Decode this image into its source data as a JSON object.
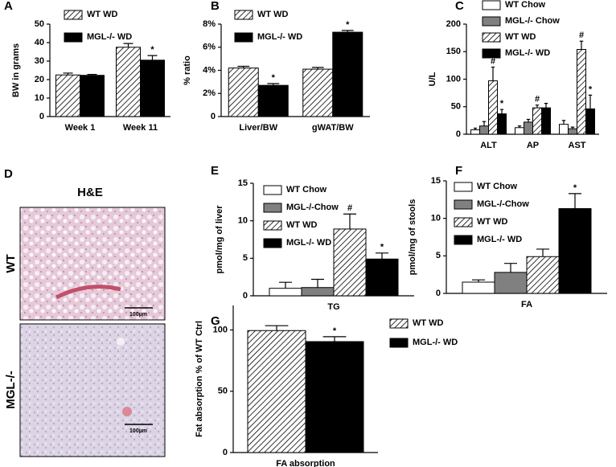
{
  "chart_data": [
    {
      "panel": "A",
      "type": "bar",
      "ylabel": "BW in grams",
      "categories": [
        "Week 1",
        "Week 11"
      ],
      "series": [
        {
          "name": "WT WD",
          "color": "#ffffff",
          "hatch": true,
          "values": [
            22.5,
            37.5
          ],
          "errors": [
            1,
            2
          ],
          "annotations": [
            null,
            null
          ]
        },
        {
          "name": "MGL-/- WD",
          "color": "#000000",
          "values": [
            22.3,
            30.5
          ],
          "errors": [
            0.5,
            2.5
          ],
          "annotations": [
            null,
            "*"
          ]
        }
      ],
      "ylim": [
        0,
        50
      ],
      "yticks": [
        0,
        10,
        20,
        30,
        40,
        50
      ],
      "legend": "top-left"
    },
    {
      "panel": "B",
      "type": "bar",
      "ylabel": "% ratio",
      "categories": [
        "Liver/BW",
        "gWAT/BW"
      ],
      "series": [
        {
          "name": "WT WD",
          "color": "#ffffff",
          "hatch": true,
          "values": [
            4.2,
            4.1
          ],
          "errors": [
            0.15,
            0.15
          ],
          "annotations": [
            null,
            null
          ]
        },
        {
          "name": "MGL-/- WD",
          "color": "#000000",
          "values": [
            2.7,
            7.3
          ],
          "errors": [
            0.15,
            0.15
          ],
          "annotations": [
            "*",
            "*"
          ]
        }
      ],
      "ylim": [
        0,
        8
      ],
      "yticks": [
        0,
        {
          "value": 2,
          "label": "2%"
        },
        {
          "value": 4,
          "label": "4%"
        },
        {
          "value": 6,
          "label": "6%"
        },
        {
          "value": 8,
          "label": "8%"
        }
      ],
      "legend": "top-left"
    },
    {
      "panel": "C",
      "type": "bar",
      "ylabel": "U/L",
      "categories": [
        "ALT",
        "AP",
        "AST"
      ],
      "series": [
        {
          "name": "WT Chow",
          "color": "#ffffff",
          "values": [
            8,
            12,
            18
          ],
          "errors": [
            3,
            3,
            7
          ],
          "annotations": [
            null,
            null,
            null
          ]
        },
        {
          "name": "MGL-/- Chow",
          "color": "#808080",
          "values": [
            15,
            22,
            10
          ],
          "errors": [
            8,
            5,
            3
          ],
          "annotations": [
            null,
            null,
            null
          ]
        },
        {
          "name": "WT WD",
          "color": "#ffffff",
          "hatch": true,
          "values": [
            97,
            48,
            154
          ],
          "errors": [
            25,
            5,
            15
          ],
          "annotations": [
            "#",
            "#",
            "#"
          ]
        },
        {
          "name": "MGL-/- WD",
          "color": "#000000",
          "values": [
            37,
            48,
            46
          ],
          "errors": [
            8,
            8,
            25
          ],
          "annotations": [
            "*",
            null,
            "*"
          ]
        }
      ],
      "ylim": [
        0,
        200
      ],
      "yticks": [
        0,
        50,
        100,
        150,
        200
      ],
      "legend": "top-right"
    },
    {
      "panel": "E",
      "type": "bar",
      "ylabel": "pmol/mg of liver",
      "categories": [
        "TG"
      ],
      "series": [
        {
          "name": "WT Chow",
          "color": "#ffffff",
          "values": [
            1
          ],
          "errors": [
            0.8
          ],
          "annotations": [
            null
          ]
        },
        {
          "name": "MGL-/-Chow",
          "color": "#808080",
          "values": [
            1.1
          ],
          "errors": [
            1.1
          ],
          "annotations": [
            null
          ]
        },
        {
          "name": "WT WD",
          "color": "#ffffff",
          "hatch": true,
          "values": [
            8.9
          ],
          "errors": [
            2
          ],
          "annotations": [
            "#"
          ]
        },
        {
          "name": "MGL-/- WD",
          "color": "#000000",
          "values": [
            4.9
          ],
          "errors": [
            0.8
          ],
          "annotations": [
            "*"
          ]
        }
      ],
      "ylim": [
        0,
        15
      ],
      "yticks": [
        0,
        5,
        10,
        15
      ],
      "legend": "top-left"
    },
    {
      "panel": "F",
      "type": "bar",
      "ylabel": "pmol/mg of stools",
      "categories": [
        "FA"
      ],
      "series": [
        {
          "name": "WT Chow",
          "color": "#ffffff",
          "values": [
            1.5
          ],
          "errors": [
            0.3
          ],
          "annotations": [
            null
          ]
        },
        {
          "name": "MGL-/-Chow",
          "color": "#808080",
          "values": [
            2.8
          ],
          "errors": [
            1.2
          ],
          "annotations": [
            null
          ]
        },
        {
          "name": "WT WD",
          "color": "#ffffff",
          "hatch": true,
          "values": [
            4.9
          ],
          "errors": [
            1
          ],
          "annotations": [
            null
          ]
        },
        {
          "name": "MGL-/- WD",
          "color": "#000000",
          "values": [
            11.3
          ],
          "errors": [
            2
          ],
          "annotations": [
            "*"
          ]
        }
      ],
      "ylim": [
        0,
        15
      ],
      "yticks": [
        0,
        5,
        10,
        15
      ],
      "legend": "top-left"
    },
    {
      "panel": "G",
      "type": "bar",
      "ylabel": "Fat absorption % of WT Ctrl",
      "categories": [
        "FA absorption"
      ],
      "series": [
        {
          "name": "WT WD",
          "color": "#ffffff",
          "hatch": true,
          "values": [
            99.5
          ],
          "errors": [
            4
          ],
          "annotations": [
            null
          ]
        },
        {
          "name": "MGL-/- WD",
          "color": "#000000",
          "values": [
            90.5
          ],
          "errors": [
            4
          ],
          "annotations": [
            "*"
          ]
        }
      ],
      "ylim": [
        0,
        120
      ],
      "yticks": [
        0,
        50,
        100
      ],
      "legend": "right"
    }
  ],
  "histology": {
    "panel": "D",
    "stain": "H&E",
    "rows": [
      {
        "label": "WT",
        "scale": "100µm"
      },
      {
        "label": "MGL-/-",
        "scale": "100µm"
      }
    ]
  }
}
